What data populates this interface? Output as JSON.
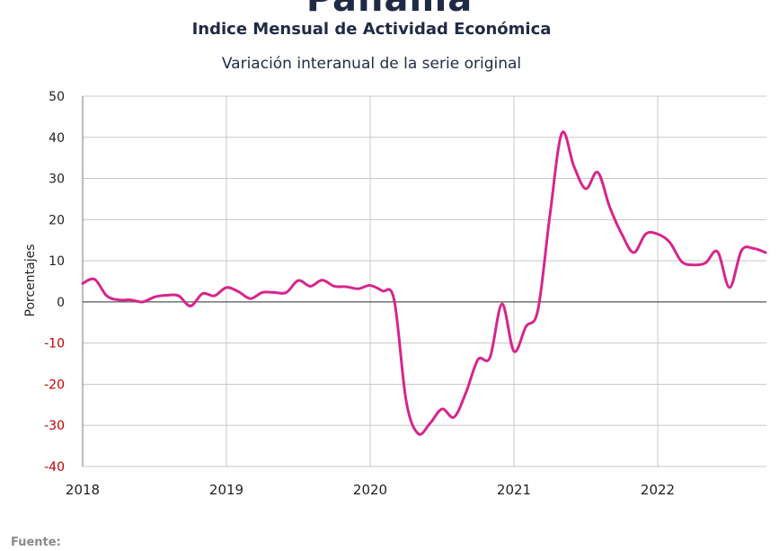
{
  "header": {
    "country": "Panamá",
    "title": "Indice Mensual de  Actividad Económica",
    "subtitle": "Variación interanual de la serie original"
  },
  "footer": {
    "source_label": "Fuente:"
  },
  "colors": {
    "series": "#d6268e",
    "negative_tick": "#c00000",
    "axis_text": "#222222",
    "grid": "#c8c8c8"
  },
  "chart_data": {
    "type": "line",
    "ylabel": "Porcentajes",
    "xlabel": "",
    "ylim": [
      -40,
      50
    ],
    "yticks": [
      50,
      40,
      30,
      20,
      10,
      0,
      -10,
      -20,
      -30,
      -40
    ],
    "ytick_labels": [
      "50",
      "40",
      "30",
      "20",
      "10",
      "0",
      "-10",
      "-20",
      "-30",
      "-40"
    ],
    "xticks": [
      "2018",
      "2019",
      "2020",
      "2021",
      "2022"
    ],
    "grid": true,
    "legend": "none",
    "series": [
      {
        "x": [
          "2018-01",
          "2018-02",
          "2018-03",
          "2018-04",
          "2018-05",
          "2018-06",
          "2018-07",
          "2018-08",
          "2018-09",
          "2018-10",
          "2018-11",
          "2018-12",
          "2019-01",
          "2019-02",
          "2019-03",
          "2019-04",
          "2019-05",
          "2019-06",
          "2019-07",
          "2019-08",
          "2019-09",
          "2019-10",
          "2019-11",
          "2019-12",
          "2020-01",
          "2020-02",
          "2020-03",
          "2020-04",
          "2020-05",
          "2020-06",
          "2020-07",
          "2020-08",
          "2020-09",
          "2020-10",
          "2020-11",
          "2020-12",
          "2021-01",
          "2021-02",
          "2021-03",
          "2021-04",
          "2021-05",
          "2021-06",
          "2021-07",
          "2021-08",
          "2021-09",
          "2021-10",
          "2021-11",
          "2021-12",
          "2022-01",
          "2022-02",
          "2022-03",
          "2022-04",
          "2022-05",
          "2022-06",
          "2022-07",
          "2022-08",
          "2022-09",
          "2022-10"
        ],
        "values": [
          4.5,
          5.5,
          1.5,
          0.5,
          0.5,
          0.0,
          1.2,
          1.6,
          1.5,
          -1.0,
          2.0,
          1.5,
          3.5,
          2.5,
          0.8,
          2.3,
          2.3,
          2.3,
          5.2,
          3.8,
          5.3,
          3.8,
          3.7,
          3.2,
          4.0,
          2.7,
          0.5,
          -24.0,
          -32.0,
          -29.5,
          -26.0,
          -28.0,
          -22.0,
          -14.0,
          -13.5,
          -0.5,
          -12.0,
          -6.0,
          -2.0,
          21.0,
          41.0,
          33.0,
          27.5,
          31.5,
          23.0,
          16.5,
          12.0,
          16.5,
          16.5,
          14.5,
          9.8,
          9.0,
          9.5,
          12.2,
          3.5,
          12.5,
          13.0,
          12.0
        ]
      }
    ]
  }
}
